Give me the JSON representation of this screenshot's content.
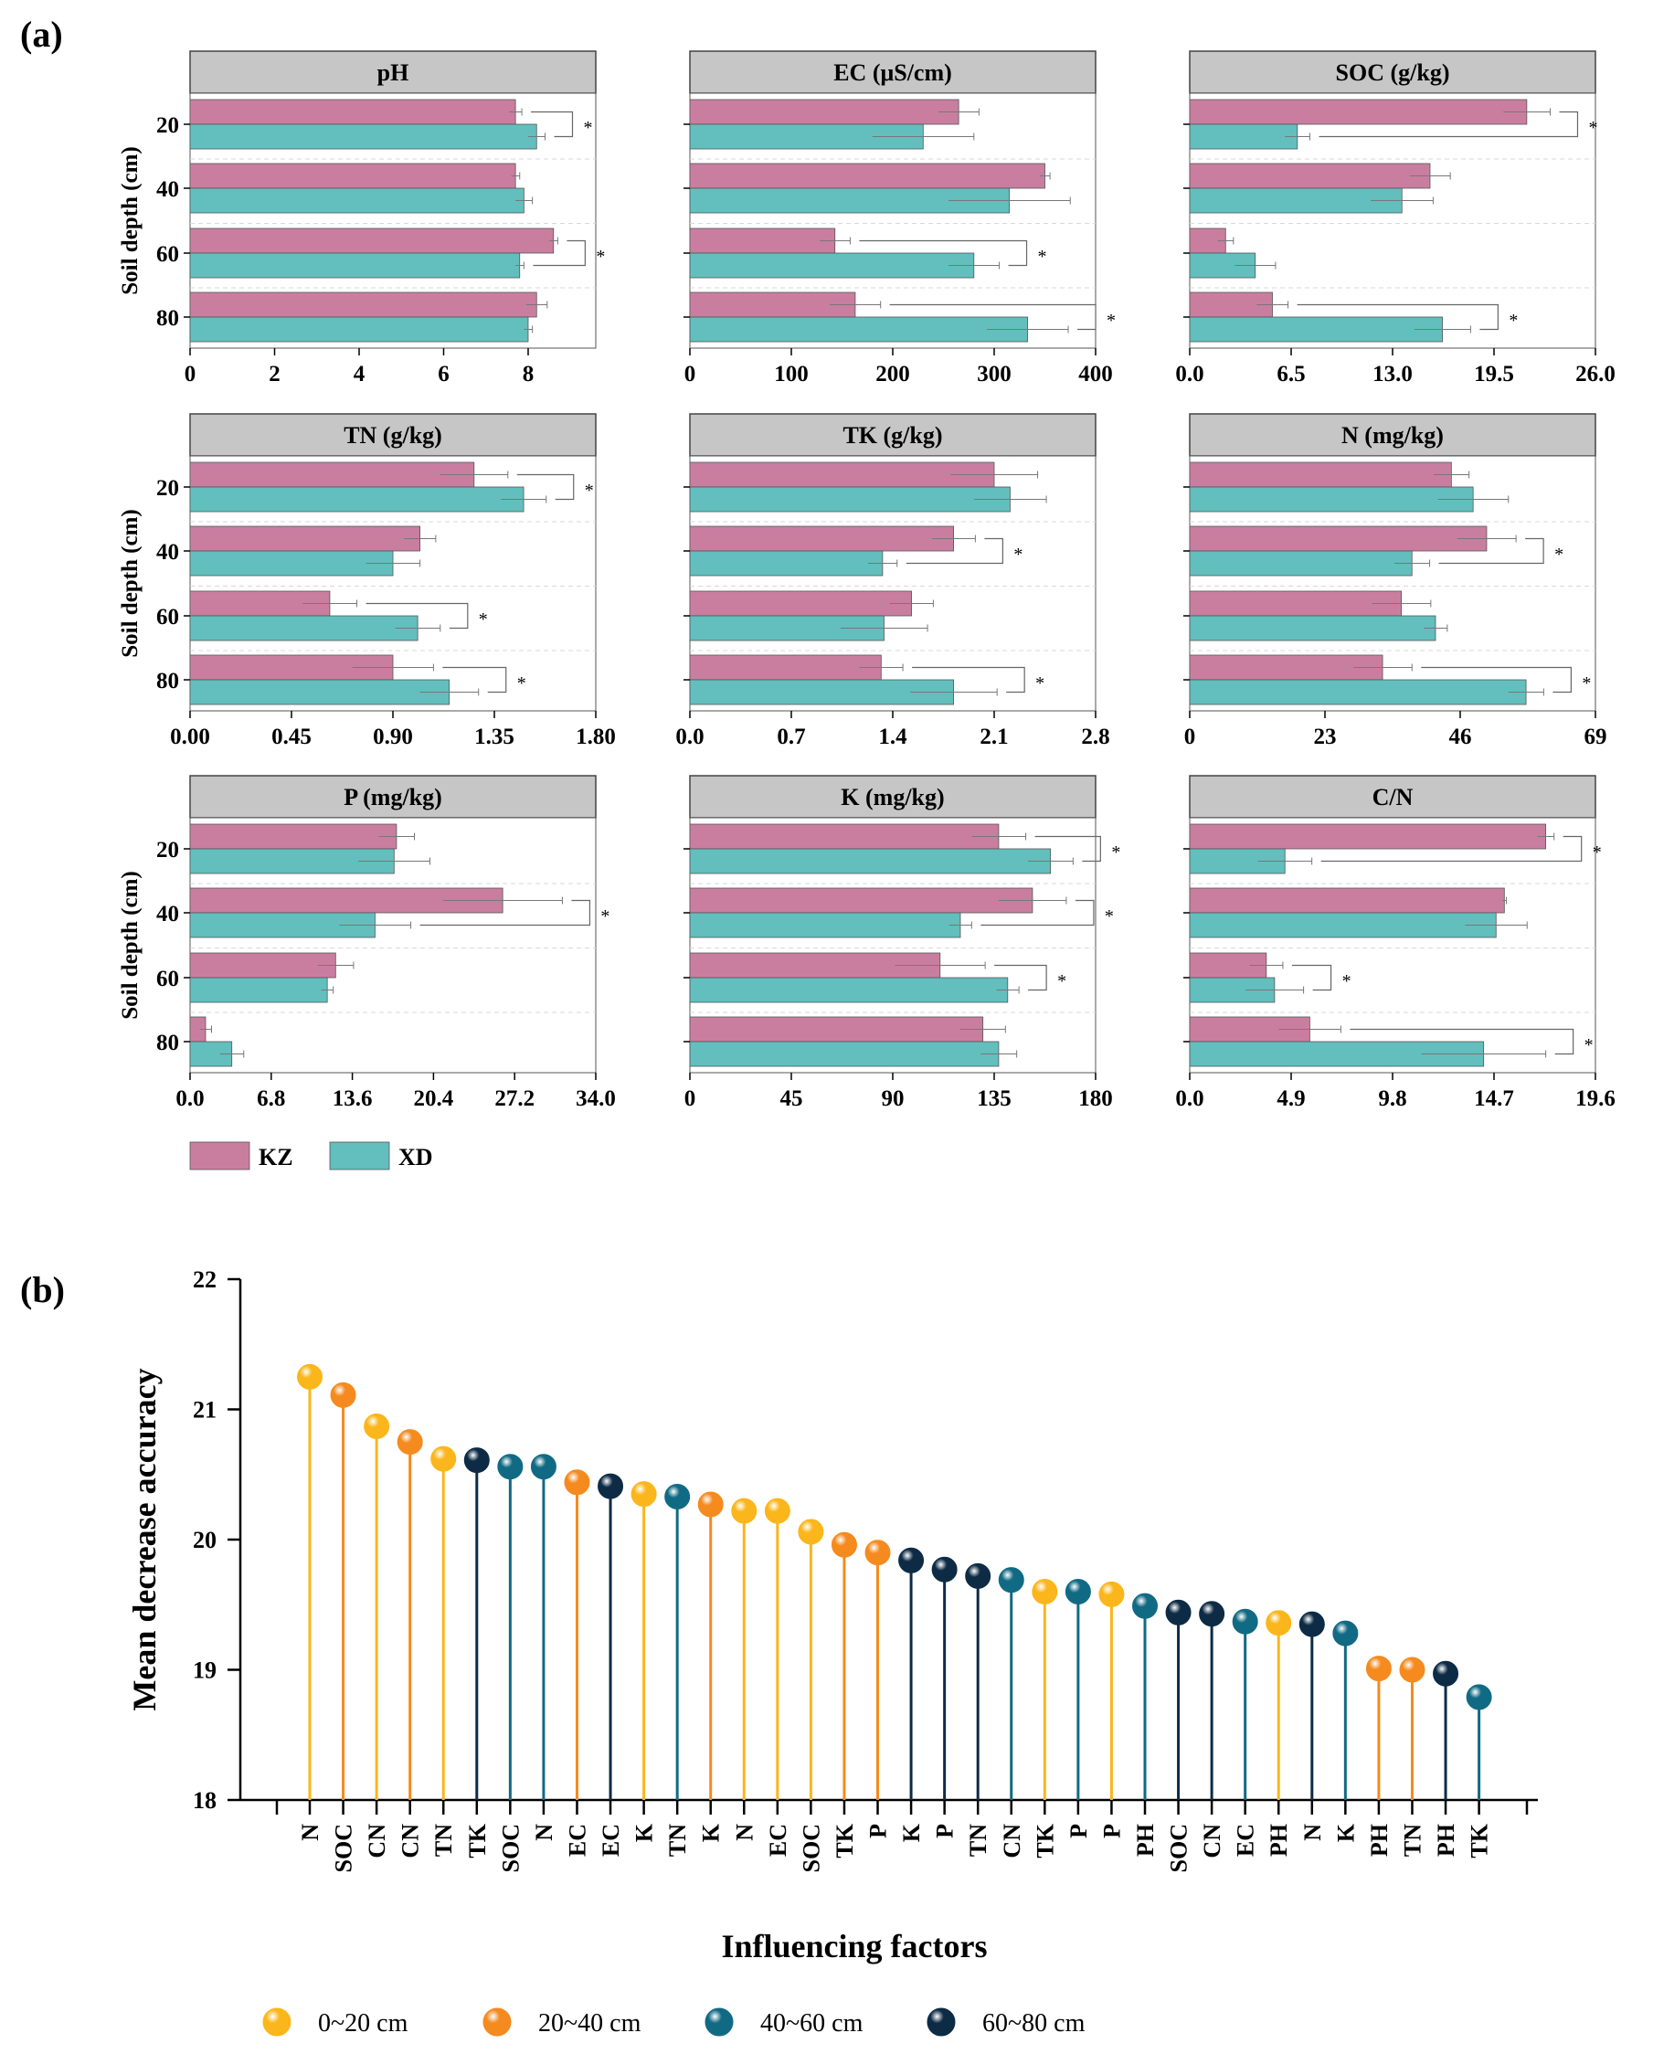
{
  "panel_labels": {
    "a": "(a)",
    "b": "(b)"
  },
  "colors": {
    "KZ": "#c97ea0",
    "XD": "#62bfbd",
    "0~20 cm": "#fbb61c",
    "20~40 cm": "#f58a1f",
    "40~60 cm": "#116a83",
    "60~80 cm": "#0d2b45"
  },
  "chart_data": [
    {
      "type": "bar",
      "orientation": "horizontal",
      "layout": "3x3 facet grid",
      "ylabel": "Soil depth (cm)",
      "categories": [
        "20",
        "40",
        "60",
        "80"
      ],
      "legend": [
        {
          "name": "KZ",
          "color": "#c97ea0"
        },
        {
          "name": "XD",
          "color": "#62bfbd"
        }
      ],
      "panels": [
        {
          "title": "pH",
          "xlim": [
            0,
            9.6
          ],
          "ticks": [
            "0",
            "2",
            "4",
            "6",
            "8"
          ],
          "series": [
            {
              "name": "KZ",
              "values": [
                7.7,
                7.7,
                8.6,
                8.2
              ],
              "errors": [
                0.15,
                0.1,
                0.1,
                0.25
              ]
            },
            {
              "name": "XD",
              "values": [
                8.2,
                7.9,
                7.8,
                8.0
              ],
              "errors": [
                0.2,
                0.2,
                0.1,
                0.1
              ]
            }
          ],
          "significance": [
            "*",
            "",
            "*",
            ""
          ]
        },
        {
          "title": "EC (μS/cm)",
          "xlim": [
            0,
            400
          ],
          "ticks": [
            "0",
            "100",
            "200",
            "300",
            "400"
          ],
          "series": [
            {
              "name": "KZ",
              "values": [
                265,
                350,
                143,
                163
              ],
              "errors": [
                20,
                5,
                15,
                25
              ]
            },
            {
              "name": "XD",
              "values": [
                230,
                315,
                280,
                333
              ],
              "errors": [
                50,
                60,
                25,
                40
              ]
            }
          ],
          "significance": [
            "",
            "",
            "*",
            "*"
          ]
        },
        {
          "title": "SOC (g/kg)",
          "xlim": [
            0,
            26
          ],
          "ticks": [
            "0.0",
            "6.5",
            "13.0",
            "19.5",
            "26.0"
          ],
          "series": [
            {
              "name": "KZ",
              "values": [
                21.6,
                15.4,
                2.3,
                5.3
              ],
              "errors": [
                1.5,
                1.3,
                0.5,
                1.0
              ]
            },
            {
              "name": "XD",
              "values": [
                6.9,
                13.6,
                4.2,
                16.2
              ],
              "errors": [
                0.8,
                2.0,
                1.3,
                1.8
              ]
            }
          ],
          "significance": [
            "*",
            "",
            "",
            "*"
          ]
        },
        {
          "title": "TN (g/kg)",
          "xlim": [
            0,
            1.8
          ],
          "ticks": [
            "0.00",
            "0.45",
            "0.90",
            "1.35",
            "1.80"
          ],
          "series": [
            {
              "name": "KZ",
              "values": [
                1.26,
                1.02,
                0.62,
                0.9
              ],
              "errors": [
                0.15,
                0.07,
                0.12,
                0.18
              ]
            },
            {
              "name": "XD",
              "values": [
                1.48,
                0.9,
                1.01,
                1.15
              ],
              "errors": [
                0.1,
                0.12,
                0.1,
                0.13
              ]
            }
          ],
          "significance": [
            "*",
            "",
            "*",
            "*"
          ]
        },
        {
          "title": "TK (g/kg)",
          "xlim": [
            0,
            2.8
          ],
          "ticks": [
            "0.0",
            "0.7",
            "1.4",
            "2.1",
            "2.8"
          ],
          "series": [
            {
              "name": "KZ",
              "values": [
                2.1,
                1.82,
                1.53,
                1.32
              ],
              "errors": [
                0.3,
                0.15,
                0.15,
                0.15
              ]
            },
            {
              "name": "XD",
              "values": [
                2.21,
                1.33,
                1.34,
                1.82
              ],
              "errors": [
                0.25,
                0.1,
                0.3,
                0.3
              ]
            }
          ],
          "significance": [
            "",
            "*",
            "",
            "*"
          ]
        },
        {
          "title": "N (mg/kg)",
          "xlim": [
            0,
            69
          ],
          "ticks": [
            "0",
            "23",
            "46",
            "69"
          ],
          "series": [
            {
              "name": "KZ",
              "values": [
                44.5,
                50.5,
                36.0,
                32.8
              ],
              "errors": [
                3,
                5,
                5,
                5
              ]
            },
            {
              "name": "XD",
              "values": [
                48.2,
                37.8,
                41.8,
                57.2
              ],
              "errors": [
                6,
                3,
                2,
                3
              ]
            }
          ],
          "significance": [
            "",
            "*",
            "",
            "*"
          ]
        },
        {
          "title": "P (mg/kg)",
          "xlim": [
            0,
            34
          ],
          "ticks": [
            "0.0",
            "6.8",
            "13.6",
            "20.4",
            "27.2",
            "34.0"
          ],
          "series": [
            {
              "name": "KZ",
              "values": [
                17.3,
                26.2,
                12.2,
                1.3
              ],
              "errors": [
                1.5,
                5,
                1.5,
                0.5
              ]
            },
            {
              "name": "XD",
              "values": [
                17.1,
                15.5,
                11.5,
                3.5
              ],
              "errors": [
                3,
                3,
                0.5,
                1
              ]
            }
          ],
          "significance": [
            "",
            "*",
            "",
            ""
          ]
        },
        {
          "title": "K (mg/kg)",
          "xlim": [
            0,
            180
          ],
          "ticks": [
            "0",
            "45",
            "90",
            "135",
            "180"
          ],
          "series": [
            {
              "name": "KZ",
              "values": [
                137,
                152,
                111,
                130
              ],
              "errors": [
                12,
                15,
                20,
                10
              ]
            },
            {
              "name": "XD",
              "values": [
                160,
                120,
                141,
                137
              ],
              "errors": [
                10,
                5,
                5,
                8
              ]
            }
          ],
          "significance": [
            "*",
            "*",
            "*",
            ""
          ]
        },
        {
          "title": "C/N",
          "xlim": [
            0,
            19.6
          ],
          "ticks": [
            "0.0",
            "4.9",
            "9.8",
            "14.7",
            "19.6"
          ],
          "series": [
            {
              "name": "KZ",
              "values": [
                17.2,
                15.2,
                3.7,
                5.8
              ],
              "errors": [
                0.4,
                0.1,
                0.8,
                1.5
              ]
            },
            {
              "name": "XD",
              "values": [
                4.6,
                14.8,
                4.1,
                14.2
              ],
              "errors": [
                1.3,
                1.5,
                1.4,
                3
              ]
            }
          ],
          "significance": [
            "*",
            "",
            "*",
            "*"
          ]
        }
      ]
    },
    {
      "type": "lollipop",
      "xlabel": "Influencing factors",
      "ylabel": "Mean decrease accuracy",
      "ylim": [
        18,
        22
      ],
      "yticks": [
        "18",
        "19",
        "20",
        "21",
        "22"
      ],
      "categories": [
        "N",
        "SOC",
        "CN",
        "CN",
        "TN",
        "TK",
        "SOC",
        "N",
        "EC",
        "EC",
        "K",
        "TN",
        "K",
        "N",
        "EC",
        "SOC",
        "TK",
        "P",
        "K",
        "P",
        "TN",
        "CN",
        "TK",
        "P",
        "P",
        "PH",
        "SOC",
        "CN",
        "EC",
        "PH",
        "N",
        "K",
        "PH",
        "TN",
        "PH",
        "TK"
      ],
      "values": [
        21.25,
        21.11,
        20.87,
        20.75,
        20.62,
        20.61,
        20.56,
        20.56,
        20.44,
        20.41,
        20.35,
        20.33,
        20.27,
        20.22,
        20.22,
        20.06,
        19.96,
        19.9,
        19.84,
        19.77,
        19.72,
        19.69,
        19.6,
        19.6,
        19.58,
        19.49,
        19.44,
        19.43,
        19.37,
        19.36,
        19.35,
        19.28,
        19.01,
        19.0,
        18.97,
        18.79
      ],
      "groups": [
        "0~20 cm",
        "20~40 cm",
        "0~20 cm",
        "20~40 cm",
        "0~20 cm",
        "60~80 cm",
        "40~60 cm",
        "40~60 cm",
        "20~40 cm",
        "60~80 cm",
        "0~20 cm",
        "40~60 cm",
        "20~40 cm",
        "0~20 cm",
        "0~20 cm",
        "0~20 cm",
        "20~40 cm",
        "20~40 cm",
        "60~80 cm",
        "60~80 cm",
        "60~80 cm",
        "40~60 cm",
        "0~20 cm",
        "40~60 cm",
        "0~20 cm",
        "40~60 cm",
        "60~80 cm",
        "60~80 cm",
        "40~60 cm",
        "0~20 cm",
        "60~80 cm",
        "40~60 cm",
        "20~40 cm",
        "20~40 cm",
        "60~80 cm",
        "40~60 cm"
      ],
      "legend": [
        "0~20 cm",
        "20~40 cm",
        "40~60 cm",
        "60~80 cm"
      ]
    }
  ]
}
